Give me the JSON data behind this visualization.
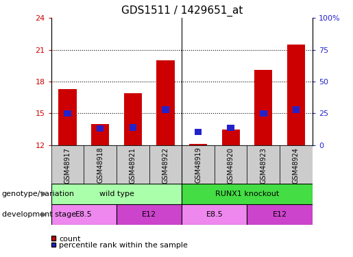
{
  "title": "GDS1511 / 1429651_at",
  "samples": [
    "GSM48917",
    "GSM48918",
    "GSM48921",
    "GSM48922",
    "GSM48919",
    "GSM48920",
    "GSM48923",
    "GSM48924"
  ],
  "count_values": [
    17.3,
    14.0,
    16.9,
    20.0,
    12.1,
    13.5,
    19.1,
    21.5
  ],
  "percentile_values": [
    25.0,
    13.0,
    14.0,
    28.0,
    10.5,
    13.5,
    25.0,
    28.0
  ],
  "ylim_left": [
    12,
    24
  ],
  "ylim_right": [
    0,
    100
  ],
  "yticks_left": [
    12,
    15,
    18,
    21,
    24
  ],
  "yticks_right": [
    0,
    25,
    50,
    75,
    100
  ],
  "ytick_right_labels": [
    "0",
    "25",
    "50",
    "75",
    "100%"
  ],
  "count_color": "#cc0000",
  "percentile_color": "#2222cc",
  "bar_width": 0.55,
  "plot_bg": "#ffffff",
  "x_bg": "#cccccc",
  "genotype_groups": [
    {
      "label": "wild type",
      "start": 0,
      "end": 4,
      "color": "#aaffaa"
    },
    {
      "label": "RUNX1 knockout",
      "start": 4,
      "end": 8,
      "color": "#44dd44"
    }
  ],
  "stage_groups": [
    {
      "label": "E8.5",
      "start": 0,
      "end": 2,
      "color": "#ee88ee"
    },
    {
      "label": "E12",
      "start": 2,
      "end": 4,
      "color": "#cc44cc"
    },
    {
      "label": "E8.5",
      "start": 4,
      "end": 6,
      "color": "#ee88ee"
    },
    {
      "label": "E12",
      "start": 6,
      "end": 8,
      "color": "#cc44cc"
    }
  ],
  "genotype_label": "genotype/variation",
  "stage_label": "development stage",
  "legend_count": "count",
  "legend_percentile": "percentile rank within the sample",
  "grid_yticks": [
    15,
    18,
    21
  ],
  "group_divider": 3.5
}
